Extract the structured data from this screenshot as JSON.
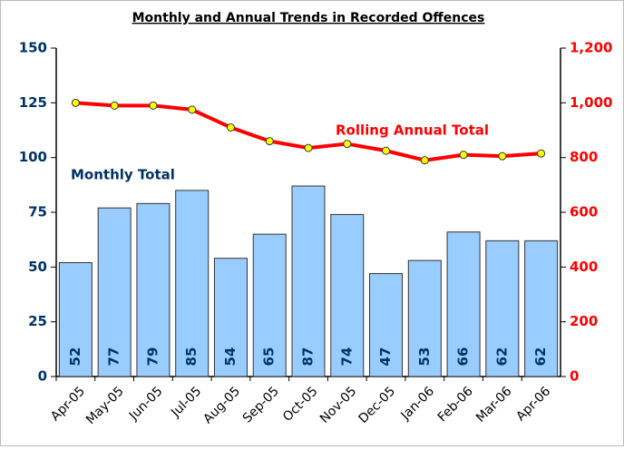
{
  "chart_data": {
    "type": "bar-line",
    "title": "Monthly and Annual Trends in Recorded Offences",
    "categories": [
      "Apr-05",
      "May-05",
      "Jun-05",
      "Jul-05",
      "Aug-05",
      "Sep-05",
      "Oct-05",
      "Nov-05",
      "Dec-05",
      "Jan-06",
      "Feb-06",
      "Mar-06",
      "Apr-06"
    ],
    "series": [
      {
        "name": "Monthly Total",
        "type": "bar",
        "color": "#99ccff",
        "values": [
          52,
          77,
          79,
          85,
          54,
          65,
          87,
          74,
          47,
          53,
          66,
          62,
          62
        ]
      },
      {
        "name": "Rolling Annual Total",
        "type": "line",
        "axis": "y2",
        "color": "#ff0000",
        "marker_color": "#ffff00",
        "values": [
          1000,
          990,
          990,
          975,
          910,
          860,
          835,
          850,
          825,
          790,
          810,
          805,
          815
        ]
      }
    ],
    "ylim": [
      0,
      150
    ],
    "yticks": [
      0,
      25,
      50,
      75,
      100,
      125,
      150
    ],
    "y2lim": [
      0,
      1200
    ],
    "y2ticks": [
      0,
      200,
      400,
      600,
      800,
      {
        "value": 1000,
        "label": "1,000"
      },
      {
        "value": 1200,
        "label": "1,200"
      }
    ]
  }
}
